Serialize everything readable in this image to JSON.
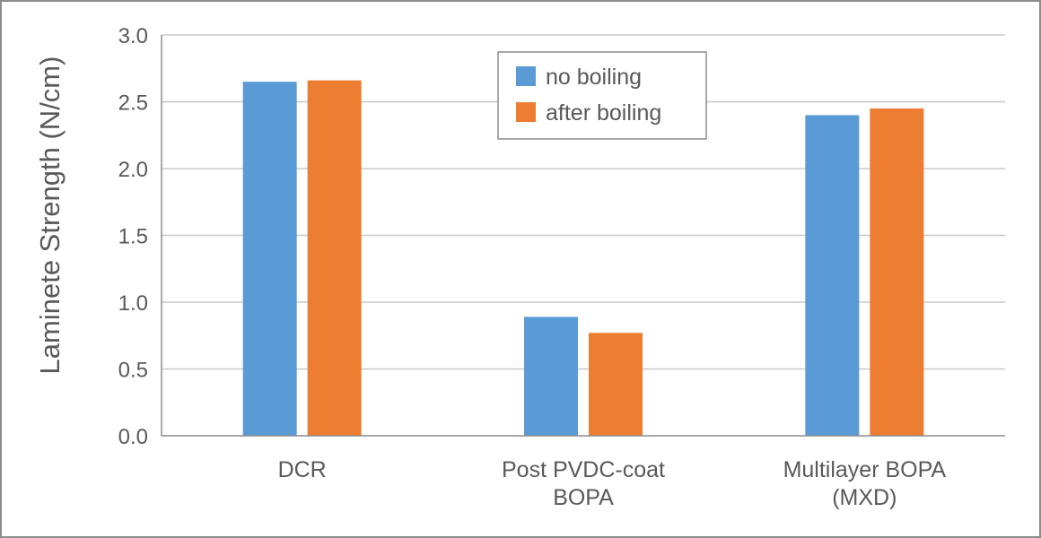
{
  "chart_data": {
    "type": "bar",
    "categories": [
      [
        "DCR"
      ],
      [
        "Post PVDC-coat",
        "BOPA"
      ],
      [
        "Multilayer BOPA",
        "(MXD)"
      ]
    ],
    "series": [
      {
        "name": "no boiling",
        "color": "#5b9bd5",
        "values": [
          2.65,
          0.89,
          2.4
        ]
      },
      {
        "name": "after boiling",
        "color": "#ed7d31",
        "values": [
          2.66,
          0.77,
          2.45
        ]
      }
    ],
    "ylabel": "Laminete Strength (N/cm)",
    "xlabel": "",
    "ylim": [
      0,
      3.0
    ],
    "yticks": [
      "0.0",
      "0.5",
      "1.0",
      "1.5",
      "2.0",
      "2.5",
      "3.0"
    ],
    "grid": true,
    "legend_position": "top-center"
  }
}
